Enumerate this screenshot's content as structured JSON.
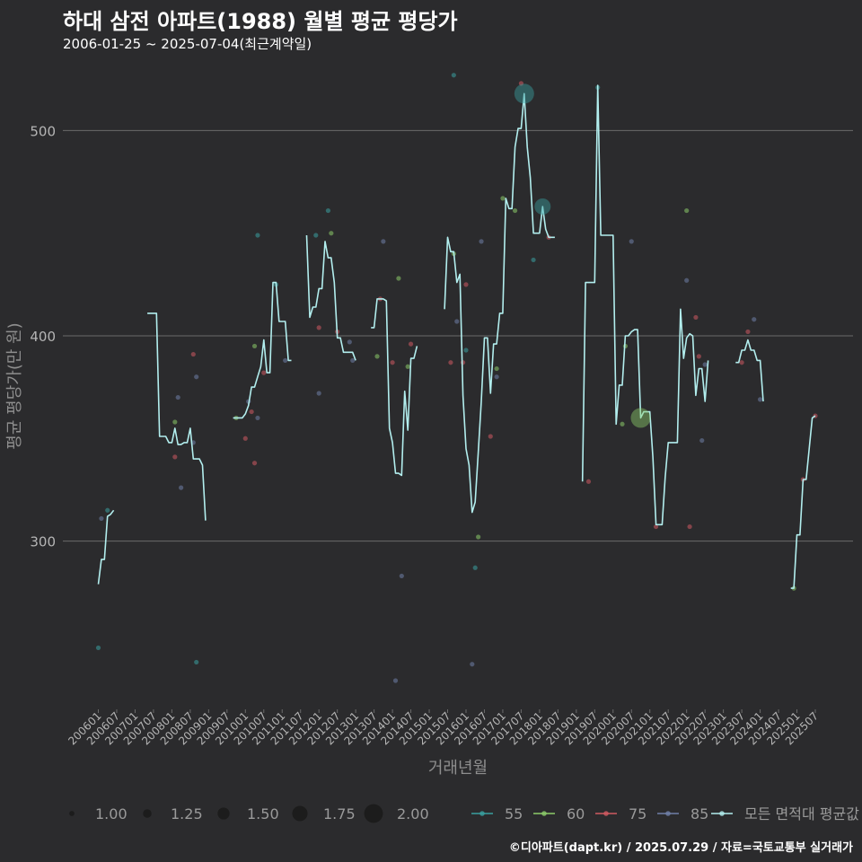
{
  "title": "하대 삼전 아파트(1988) 월별 평균 평당가",
  "subtitle": "2006-01-25 ~ 2025-07-04(최근계약일)",
  "caption": "©디아파트(dapt.kr) / 2025.07.29 / 자료=국토교통부 실거래가",
  "colors": {
    "background": "#2b2b2d",
    "grid": "#6b6b6b",
    "line": "#b2eeee",
    "s55": "#3aa0a0",
    "s60": "#8ccc6a",
    "s75": "#d05a62",
    "s85": "#7080a8",
    "tick": "#b5b5b5",
    "axis_title": "#8e8e8e"
  },
  "chart_data": {
    "type": "line",
    "title": "하대 삼전 아파트(1988) 월별 평균 평당가",
    "xlabel": "거래년월",
    "ylabel": "평균 평당가(만 원)",
    "ylim": [
      218,
      533
    ],
    "yticks": [
      300,
      400,
      500
    ],
    "x_start": "200601",
    "x_end": "202507",
    "xticks": [
      "200601",
      "200607",
      "200701",
      "200707",
      "200801",
      "200807",
      "200901",
      "200907",
      "201001",
      "201007",
      "201101",
      "201107",
      "201201",
      "201207",
      "201301",
      "201307",
      "201401",
      "201407",
      "201501",
      "201507",
      "201601",
      "201607",
      "201701",
      "201707",
      "201801",
      "201807",
      "201901",
      "201907",
      "202001",
      "202007",
      "202101",
      "202107",
      "202201",
      "202207",
      "202301",
      "202307",
      "202401",
      "202407",
      "202501",
      "202507"
    ],
    "average_series": {
      "name": "모든 면적대 평균값",
      "segments": [
        [
          [
            0,
            279
          ],
          [
            1,
            291
          ],
          [
            2,
            291
          ],
          [
            3,
            312
          ],
          [
            4,
            313
          ],
          [
            5,
            315
          ]
        ],
        [
          [
            16,
            411
          ],
          [
            17,
            411
          ],
          [
            18,
            411
          ],
          [
            19,
            411
          ],
          [
            20,
            351
          ],
          [
            21,
            351
          ],
          [
            22,
            351
          ],
          [
            23,
            348
          ],
          [
            24,
            348
          ],
          [
            25,
            355
          ],
          [
            26,
            347
          ],
          [
            27,
            347
          ],
          [
            28,
            348
          ],
          [
            29,
            348
          ],
          [
            30,
            355
          ],
          [
            31,
            340
          ],
          [
            32,
            340
          ],
          [
            33,
            340
          ],
          [
            34,
            337
          ],
          [
            35,
            310
          ]
        ],
        [
          [
            44,
            360
          ],
          [
            45,
            360
          ],
          [
            46,
            360
          ],
          [
            47,
            360
          ],
          [
            48,
            362
          ],
          [
            49,
            366
          ],
          [
            50,
            375
          ],
          [
            51,
            375
          ],
          [
            52,
            380
          ],
          [
            53,
            385
          ],
          [
            54,
            398
          ],
          [
            55,
            382
          ],
          [
            56,
            382
          ],
          [
            57,
            426
          ],
          [
            58,
            426
          ],
          [
            59,
            407
          ],
          [
            60,
            407
          ],
          [
            61,
            407
          ],
          [
            62,
            388
          ],
          [
            63,
            388
          ]
        ],
        [
          [
            68,
            449
          ],
          [
            69,
            409
          ],
          [
            70,
            414
          ],
          [
            71,
            414
          ],
          [
            72,
            423
          ],
          [
            73,
            423
          ],
          [
            74,
            446
          ],
          [
            75,
            438
          ],
          [
            76,
            438
          ],
          [
            77,
            426
          ],
          [
            78,
            399
          ],
          [
            79,
            399
          ],
          [
            80,
            392
          ],
          [
            81,
            392
          ],
          [
            82,
            392
          ],
          [
            83,
            392
          ],
          [
            84,
            388
          ]
        ],
        [
          [
            89,
            404
          ],
          [
            90,
            404
          ],
          [
            91,
            418
          ],
          [
            92,
            418
          ],
          [
            93,
            418
          ],
          [
            94,
            417
          ],
          [
            95,
            355
          ],
          [
            96,
            348
          ],
          [
            97,
            333
          ],
          [
            98,
            333
          ],
          [
            99,
            332
          ],
          [
            100,
            373
          ],
          [
            101,
            354
          ],
          [
            102,
            389
          ],
          [
            103,
            389
          ],
          [
            104,
            395
          ]
        ],
        [
          [
            113,
            413
          ],
          [
            114,
            448
          ],
          [
            115,
            441
          ],
          [
            116,
            441
          ],
          [
            117,
            426
          ],
          [
            118,
            430
          ],
          [
            119,
            371
          ],
          [
            120,
            345
          ],
          [
            121,
            337
          ],
          [
            122,
            314
          ],
          [
            123,
            319
          ],
          [
            124,
            343
          ],
          [
            125,
            368
          ],
          [
            126,
            399
          ],
          [
            127,
            399
          ],
          [
            128,
            372
          ],
          [
            129,
            396
          ],
          [
            130,
            396
          ],
          [
            131,
            411
          ],
          [
            132,
            411
          ],
          [
            133,
            467
          ],
          [
            134,
            462
          ],
          [
            135,
            462
          ],
          [
            136,
            492
          ],
          [
            137,
            501
          ],
          [
            138,
            501
          ],
          [
            139,
            518
          ],
          [
            140,
            492
          ],
          [
            141,
            477
          ],
          [
            142,
            450
          ],
          [
            143,
            450
          ],
          [
            144,
            450
          ],
          [
            145,
            463
          ],
          [
            146,
            452
          ],
          [
            147,
            448
          ],
          [
            148,
            448
          ],
          [
            149,
            448
          ]
        ],
        [
          [
            158,
            329
          ],
          [
            159,
            426
          ],
          [
            160,
            426
          ],
          [
            161,
            426
          ],
          [
            162,
            426
          ],
          [
            163,
            522
          ],
          [
            164,
            449
          ],
          [
            165,
            449
          ],
          [
            166,
            449
          ],
          [
            167,
            449
          ],
          [
            168,
            449
          ],
          [
            169,
            357
          ],
          [
            170,
            376
          ],
          [
            171,
            376
          ],
          [
            172,
            400
          ],
          [
            173,
            400
          ],
          [
            174,
            402
          ],
          [
            175,
            403
          ],
          [
            176,
            403
          ],
          [
            177,
            360
          ],
          [
            178,
            363
          ],
          [
            179,
            363
          ],
          [
            180,
            363
          ],
          [
            181,
            341
          ],
          [
            182,
            308
          ],
          [
            183,
            308
          ],
          [
            184,
            308
          ],
          [
            185,
            331
          ],
          [
            186,
            348
          ],
          [
            187,
            348
          ],
          [
            188,
            348
          ],
          [
            189,
            348
          ],
          [
            190,
            413
          ],
          [
            191,
            389
          ],
          [
            192,
            399
          ],
          [
            193,
            401
          ],
          [
            194,
            400
          ],
          [
            195,
            371
          ],
          [
            196,
            384
          ],
          [
            197,
            384
          ],
          [
            198,
            368
          ],
          [
            199,
            388
          ]
        ],
        [
          [
            208,
            387
          ],
          [
            209,
            387
          ],
          [
            210,
            393
          ],
          [
            211,
            393
          ],
          [
            212,
            398
          ],
          [
            213,
            393
          ],
          [
            214,
            393
          ],
          [
            215,
            388
          ],
          [
            216,
            388
          ],
          [
            217,
            368
          ]
        ],
        [
          [
            226,
            277
          ],
          [
            227,
            277
          ],
          [
            228,
            303
          ],
          [
            229,
            303
          ],
          [
            230,
            330
          ],
          [
            231,
            330
          ],
          [
            232,
            345
          ],
          [
            233,
            360
          ],
          [
            234,
            361
          ]
        ]
      ]
    },
    "big_markers": [
      {
        "series": "55",
        "x": 139,
        "y": 518,
        "size": 2.0
      },
      {
        "series": "55",
        "x": 145,
        "y": 463,
        "size": 1.75
      },
      {
        "series": "60",
        "x": 177,
        "y": 360,
        "size": 2.0
      }
    ],
    "points": [
      {
        "s": "55",
        "x": 0,
        "y": 248
      },
      {
        "s": "85",
        "x": 1,
        "y": 311
      },
      {
        "s": "55",
        "x": 3,
        "y": 315
      },
      {
        "s": "60",
        "x": 25,
        "y": 358
      },
      {
        "s": "75",
        "x": 25,
        "y": 341
      },
      {
        "s": "85",
        "x": 26,
        "y": 370
      },
      {
        "s": "85",
        "x": 27,
        "y": 326
      },
      {
        "s": "75",
        "x": 31,
        "y": 391
      },
      {
        "s": "85",
        "x": 31,
        "y": 348
      },
      {
        "s": "85",
        "x": 32,
        "y": 380
      },
      {
        "s": "55",
        "x": 32,
        "y": 241
      },
      {
        "s": "60",
        "x": 45,
        "y": 360
      },
      {
        "s": "75",
        "x": 48,
        "y": 350
      },
      {
        "s": "85",
        "x": 49,
        "y": 368
      },
      {
        "s": "75",
        "x": 50,
        "y": 363
      },
      {
        "s": "75",
        "x": 51,
        "y": 338
      },
      {
        "s": "60",
        "x": 51,
        "y": 395
      },
      {
        "s": "85",
        "x": 52,
        "y": 360
      },
      {
        "s": "55",
        "x": 52,
        "y": 449
      },
      {
        "s": "75",
        "x": 54,
        "y": 382
      },
      {
        "s": "55",
        "x": 58,
        "y": 425
      },
      {
        "s": "85",
        "x": 61,
        "y": 388
      },
      {
        "s": "55",
        "x": 71,
        "y": 449
      },
      {
        "s": "75",
        "x": 72,
        "y": 404
      },
      {
        "s": "85",
        "x": 72,
        "y": 372
      },
      {
        "s": "55",
        "x": 75,
        "y": 461
      },
      {
        "s": "60",
        "x": 76,
        "y": 450
      },
      {
        "s": "75",
        "x": 78,
        "y": 402
      },
      {
        "s": "85",
        "x": 82,
        "y": 397
      },
      {
        "s": "85",
        "x": 83,
        "y": 388
      },
      {
        "s": "60",
        "x": 91,
        "y": 390
      },
      {
        "s": "75",
        "x": 92,
        "y": 418
      },
      {
        "s": "85",
        "x": 93,
        "y": 446
      },
      {
        "s": "75",
        "x": 96,
        "y": 387
      },
      {
        "s": "60",
        "x": 98,
        "y": 428
      },
      {
        "s": "85",
        "x": 99,
        "y": 283
      },
      {
        "s": "85",
        "x": 97,
        "y": 232
      },
      {
        "s": "60",
        "x": 101,
        "y": 385
      },
      {
        "s": "75",
        "x": 102,
        "y": 396
      },
      {
        "s": "55",
        "x": 116,
        "y": 527
      },
      {
        "s": "75",
        "x": 115,
        "y": 387
      },
      {
        "s": "60",
        "x": 116,
        "y": 440
      },
      {
        "s": "85",
        "x": 117,
        "y": 407
      },
      {
        "s": "75",
        "x": 119,
        "y": 387
      },
      {
        "s": "75",
        "x": 120,
        "y": 425
      },
      {
        "s": "55",
        "x": 120,
        "y": 393
      },
      {
        "s": "85",
        "x": 122,
        "y": 240
      },
      {
        "s": "55",
        "x": 123,
        "y": 287
      },
      {
        "s": "60",
        "x": 124,
        "y": 302
      },
      {
        "s": "85",
        "x": 125,
        "y": 446
      },
      {
        "s": "75",
        "x": 128,
        "y": 351
      },
      {
        "s": "60",
        "x": 130,
        "y": 384
      },
      {
        "s": "85",
        "x": 130,
        "y": 380
      },
      {
        "s": "60",
        "x": 132,
        "y": 467
      },
      {
        "s": "75",
        "x": 138,
        "y": 523
      },
      {
        "s": "60",
        "x": 136,
        "y": 461
      },
      {
        "s": "55",
        "x": 142,
        "y": 437
      },
      {
        "s": "75",
        "x": 147,
        "y": 448
      },
      {
        "s": "55",
        "x": 163,
        "y": 521
      },
      {
        "s": "75",
        "x": 160,
        "y": 329
      },
      {
        "s": "60",
        "x": 171,
        "y": 357
      },
      {
        "s": "60",
        "x": 172,
        "y": 395
      },
      {
        "s": "85",
        "x": 174,
        "y": 446
      },
      {
        "s": "75",
        "x": 182,
        "y": 307
      },
      {
        "s": "60",
        "x": 192,
        "y": 461
      },
      {
        "s": "85",
        "x": 192,
        "y": 427
      },
      {
        "s": "75",
        "x": 193,
        "y": 307
      },
      {
        "s": "75",
        "x": 195,
        "y": 409
      },
      {
        "s": "75",
        "x": 196,
        "y": 390
      },
      {
        "s": "85",
        "x": 197,
        "y": 349
      },
      {
        "s": "85",
        "x": 198,
        "y": 386
      },
      {
        "s": "75",
        "x": 210,
        "y": 387
      },
      {
        "s": "75",
        "x": 212,
        "y": 402
      },
      {
        "s": "85",
        "x": 214,
        "y": 408
      },
      {
        "s": "85",
        "x": 216,
        "y": 369
      },
      {
        "s": "60",
        "x": 227,
        "y": 277
      },
      {
        "s": "75",
        "x": 230,
        "y": 330
      },
      {
        "s": "75",
        "x": 234,
        "y": 361
      }
    ],
    "legend": {
      "size": {
        "entries": [
          "1.00",
          "1.25",
          "1.50",
          "1.75",
          "2.00"
        ]
      },
      "series": [
        {
          "key": "55",
          "label": "55"
        },
        {
          "key": "60",
          "label": "60"
        },
        {
          "key": "75",
          "label": "75"
        },
        {
          "key": "85",
          "label": "85"
        },
        {
          "key": "avg",
          "label": "모든 면적대 평균값"
        }
      ]
    }
  }
}
